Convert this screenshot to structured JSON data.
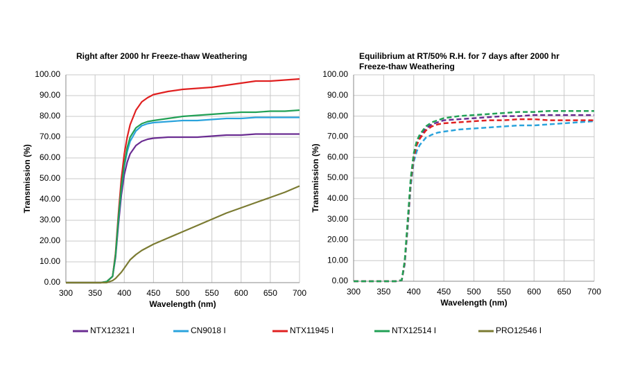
{
  "chart_data": [
    {
      "type": "line",
      "title": "Right after 2000 hr Freeze-thaw Weathering",
      "xlabel": "Wavelength (nm)",
      "ylabel": "Transmission (%)",
      "x": [
        300,
        320,
        340,
        360,
        370,
        380,
        385,
        390,
        395,
        400,
        405,
        410,
        420,
        430,
        440,
        450,
        475,
        500,
        525,
        550,
        575,
        600,
        625,
        650,
        675,
        700
      ],
      "xlim": [
        300,
        700
      ],
      "xticks": [
        300,
        350,
        400,
        450,
        500,
        550,
        600,
        650,
        700
      ],
      "ylim": [
        0,
        100
      ],
      "yticks": [
        {
          "value": 0,
          "label": "0.00"
        },
        {
          "value": 10,
          "label": "10.00"
        },
        {
          "value": 20,
          "label": "20.00"
        },
        {
          "value": 30,
          "label": "30.00"
        },
        {
          "value": 40,
          "label": "40.00"
        },
        {
          "value": 50,
          "label": "50.00"
        },
        {
          "value": 60,
          "label": "60.00"
        },
        {
          "value": 70,
          "label": "70.00"
        },
        {
          "value": 80,
          "label": "80.00"
        },
        {
          "value": 90,
          "label": "90.00"
        },
        {
          "value": 100,
          "label": "100.00"
        }
      ],
      "grid": true,
      "dashed": false,
      "series": [
        {
          "name": "NTX12321 I",
          "color": "#6a2c91",
          "values": [
            0,
            0,
            0,
            0,
            0.5,
            3,
            12,
            28,
            42,
            52,
            58,
            62,
            66,
            68,
            69,
            69.5,
            70,
            70,
            70,
            70.5,
            71,
            71,
            71.5,
            71.5,
            71.5,
            71.5
          ]
        },
        {
          "name": "CN9018 I",
          "color": "#2aa3dc",
          "values": [
            0,
            0,
            0,
            0,
            0.5,
            3,
            13,
            30,
            45,
            56,
            63,
            68,
            73,
            75.5,
            76.5,
            77,
            77.5,
            78,
            78,
            78.5,
            79,
            79,
            79.5,
            79.5,
            79.5,
            79.5
          ]
        },
        {
          "name": "NTX11945 I",
          "color": "#e02020",
          "values": [
            0,
            0,
            0,
            0,
            0.5,
            3,
            14,
            33,
            50,
            62,
            70,
            76,
            83,
            87,
            89,
            90.5,
            92,
            93,
            93.5,
            94,
            95,
            96,
            97,
            97,
            97.5,
            98
          ]
        },
        {
          "name": "NTX12514 I",
          "color": "#21a055",
          "values": [
            0,
            0,
            0,
            0,
            0.5,
            3,
            13,
            31,
            46,
            57,
            65,
            70,
            74.5,
            76.5,
            77.5,
            78,
            79,
            80,
            80.5,
            81,
            81.5,
            82,
            82,
            82.5,
            82.5,
            83
          ]
        },
        {
          "name": "PRO12546 I",
          "color": "#7b7b32",
          "values": [
            0,
            0,
            0,
            0,
            0,
            1,
            2,
            3.5,
            5,
            7,
            9,
            11,
            13.5,
            15.5,
            17,
            18.5,
            21.5,
            24.5,
            27.5,
            30.5,
            33.5,
            36,
            38.5,
            41,
            43.5,
            46.5
          ]
        }
      ]
    },
    {
      "type": "line",
      "title": "Equilibrium at RT/50% R.H. for 7 days after 2000 hr Freeze-thaw Weathering",
      "xlabel": "Wavelength (nm)",
      "ylabel": "Transmission (%)",
      "x": [
        300,
        320,
        340,
        360,
        370,
        380,
        385,
        390,
        395,
        400,
        405,
        410,
        420,
        430,
        440,
        450,
        475,
        500,
        525,
        550,
        575,
        600,
        625,
        650,
        675,
        700
      ],
      "xlim": [
        300,
        700
      ],
      "xticks": [
        300,
        350,
        400,
        450,
        500,
        550,
        600,
        650,
        700
      ],
      "ylim": [
        0,
        100
      ],
      "yticks": [
        {
          "value": 0,
          "label": "0.00"
        },
        {
          "value": 10,
          "label": "10.00"
        },
        {
          "value": 20,
          "label": "20.00"
        },
        {
          "value": 30,
          "label": "30.00"
        },
        {
          "value": 40,
          "label": "40.00"
        },
        {
          "value": 50,
          "label": "50.00"
        },
        {
          "value": 60,
          "label": "60.00"
        },
        {
          "value": 70,
          "label": "70.00"
        },
        {
          "value": 80,
          "label": "80.00"
        },
        {
          "value": 90,
          "label": "90.00"
        },
        {
          "value": 100,
          "label": "100.00"
        }
      ],
      "grid": true,
      "dashed": true,
      "series": [
        {
          "color": "#2aa3dc",
          "values": [
            0,
            0,
            0,
            0,
            0,
            0.5,
            8,
            26,
            46,
            58,
            63,
            66,
            69.5,
            71,
            72,
            72.5,
            73.5,
            74,
            74.5,
            75,
            75.5,
            75.5,
            76,
            76.5,
            77,
            77.5
          ]
        },
        {
          "color": "#6a2c91",
          "values": [
            0,
            0,
            0,
            0,
            0,
            0.5,
            9,
            29,
            49,
            61,
            67,
            70,
            74,
            76,
            77,
            78,
            78.5,
            79,
            79.5,
            80,
            80,
            80.5,
            80.5,
            80.5,
            80.5,
            80.5
          ]
        },
        {
          "color": "#e02020",
          "values": [
            0,
            0,
            0,
            0,
            0,
            0.5,
            9,
            28,
            48,
            60,
            66,
            69,
            73,
            75,
            76,
            76.5,
            77,
            77.5,
            78,
            78,
            78.5,
            78.5,
            78,
            78,
            78,
            78
          ]
        },
        {
          "color": "#21a055",
          "values": [
            0,
            0,
            0,
            0,
            0,
            0.5,
            10,
            30,
            50,
            62,
            68,
            71,
            75,
            77,
            78,
            79,
            80,
            80.5,
            81,
            81.5,
            82,
            82,
            82.5,
            82.5,
            82.5,
            82.5
          ]
        }
      ]
    }
  ]
}
